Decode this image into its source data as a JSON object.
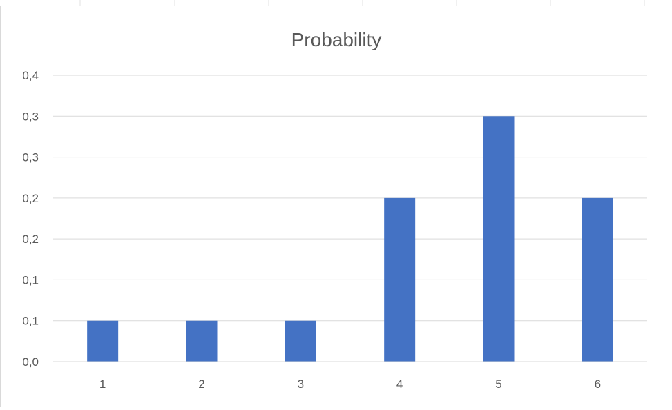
{
  "chart_data": {
    "type": "bar",
    "title": "Probability",
    "categories": [
      "1",
      "2",
      "3",
      "4",
      "5",
      "6"
    ],
    "values": [
      0.05,
      0.05,
      0.05,
      0.2,
      0.3,
      0.2
    ],
    "y_tick_labels": [
      "0,0",
      "0,1",
      "0,1",
      "0,2",
      "0,2",
      "0,3",
      "0,3",
      "0,4"
    ],
    "ylim": [
      0,
      0.35
    ],
    "xlabel": "",
    "ylabel": "",
    "grid": true,
    "legend": "none",
    "bar_color": "#4472C4",
    "gridline_color": "#D9D9D9",
    "text_color": "#595959"
  }
}
